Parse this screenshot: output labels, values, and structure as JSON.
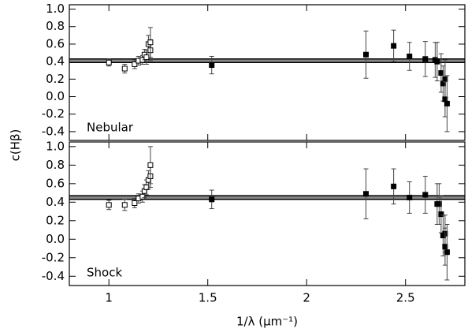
{
  "chart_data": [
    {
      "type": "scatter",
      "annotation": "Nebular",
      "ylabel": "c(Hβ)",
      "xlim": [
        0.8,
        2.8
      ],
      "xticks": [
        1.0,
        1.5,
        2.0,
        2.5
      ],
      "xtick_labels": false,
      "ylim": [
        -0.5,
        1.05
      ],
      "yticks": [
        -0.4,
        -0.2,
        {
          "value": 0,
          "label": "0.0"
        },
        0.2,
        0.4,
        0.6,
        0.8,
        {
          "value": 1,
          "label": "1.0"
        }
      ],
      "hline": 0.41,
      "hline_err": 0.02,
      "hline_color": "#888888",
      "series": [
        {
          "marker": "open",
          "color": "#000000",
          "x": [
            1.0,
            1.08,
            1.13,
            1.15,
            1.17,
            1.18,
            1.19,
            1.2,
            1.21,
            1.21
          ],
          "values": [
            0.39,
            0.32,
            0.37,
            0.41,
            0.42,
            0.48,
            0.45,
            0.6,
            0.53,
            0.62
          ],
          "errors": [
            0.04,
            0.05,
            0.05,
            0.05,
            0.05,
            0.06,
            0.08,
            0.1,
            0.12,
            0.17
          ]
        },
        {
          "marker": "filled",
          "color": "#000000",
          "x": [
            1.52,
            2.3,
            2.44,
            2.52,
            2.6,
            2.65,
            2.66,
            2.68,
            2.69,
            2.7,
            2.7,
            2.71
          ],
          "values": [
            0.36,
            0.48,
            0.58,
            0.46,
            0.43,
            0.42,
            0.4,
            0.27,
            0.15,
            0.2,
            -0.03,
            -0.08
          ],
          "errors": [
            0.1,
            0.27,
            0.18,
            0.16,
            0.2,
            0.2,
            0.22,
            0.22,
            0.2,
            0.22,
            0.2,
            0.32
          ]
        }
      ]
    },
    {
      "type": "scatter",
      "annotation": "Shock",
      "xlabel": "1/λ (μm⁻¹)",
      "xlim": [
        0.8,
        2.8
      ],
      "xticks": [
        1.0,
        1.5,
        2.0,
        2.5
      ],
      "xtick_labels": true,
      "ylim": [
        -0.5,
        1.05
      ],
      "yticks": [
        -0.4,
        -0.2,
        {
          "value": 0,
          "label": "0.0"
        },
        0.2,
        0.4,
        0.6,
        0.8,
        {
          "value": 1,
          "label": "1.0"
        }
      ],
      "hline": 0.45,
      "hline_err": 0.02,
      "hline_color": "#888888",
      "series": [
        {
          "marker": "open",
          "color": "#000000",
          "x": [
            1.0,
            1.08,
            1.13,
            1.15,
            1.17,
            1.18,
            1.19,
            1.2,
            1.21,
            1.21
          ],
          "values": [
            0.37,
            0.37,
            0.39,
            0.44,
            0.46,
            0.52,
            0.56,
            0.64,
            0.68,
            0.8
          ],
          "errors": [
            0.05,
            0.06,
            0.05,
            0.05,
            0.06,
            0.07,
            0.08,
            0.1,
            0.12,
            0.2
          ]
        },
        {
          "marker": "filled",
          "color": "#000000",
          "x": [
            1.52,
            2.3,
            2.44,
            2.52,
            2.6,
            2.66,
            2.67,
            2.68,
            2.69,
            2.7,
            2.7,
            2.71
          ],
          "values": [
            0.43,
            0.49,
            0.57,
            0.45,
            0.48,
            0.38,
            0.38,
            0.27,
            0.04,
            0.06,
            -0.08,
            -0.14
          ],
          "errors": [
            0.1,
            0.27,
            0.19,
            0.17,
            0.2,
            0.22,
            0.22,
            0.2,
            0.22,
            0.2,
            0.2,
            0.3
          ]
        }
      ]
    }
  ]
}
